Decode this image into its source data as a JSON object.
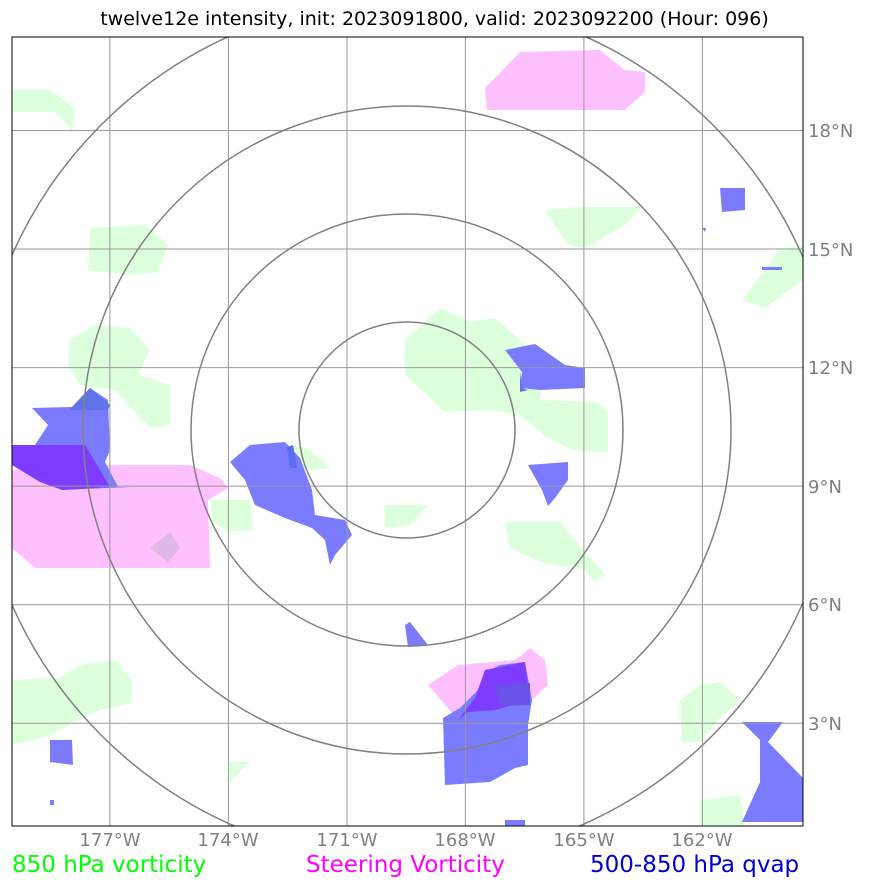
{
  "title": "twelve12e intensity, init: 2023091800, valid: 2023092200 (Hour: 096)",
  "map": {
    "lat_labels": [
      "18°N",
      "15°N",
      "12°N",
      "9°N",
      "6°N",
      "3°N"
    ],
    "lon_labels": [
      "177°W",
      "174°W",
      "171°W",
      "168°W",
      "165°W",
      "162°W"
    ],
    "lat_values": [
      18,
      15,
      12,
      9,
      6,
      3
    ],
    "lon_values": [
      -177,
      -174,
      -171,
      -168,
      -165,
      -162
    ],
    "range_rings": 4
  },
  "legend": {
    "vort850": "850 hPa vorticity",
    "steering": "Steering Vorticity",
    "qvap": "500-850 hPa qvap"
  },
  "colors": {
    "vort850": "#00ff00",
    "steering": "#ff00ff",
    "qvap": "#0000cd",
    "vort850_fill": "#dcffdc",
    "steering_fill": "#ffc0ff",
    "qvap_fill": "#7b7bff",
    "grid": "#808080"
  }
}
